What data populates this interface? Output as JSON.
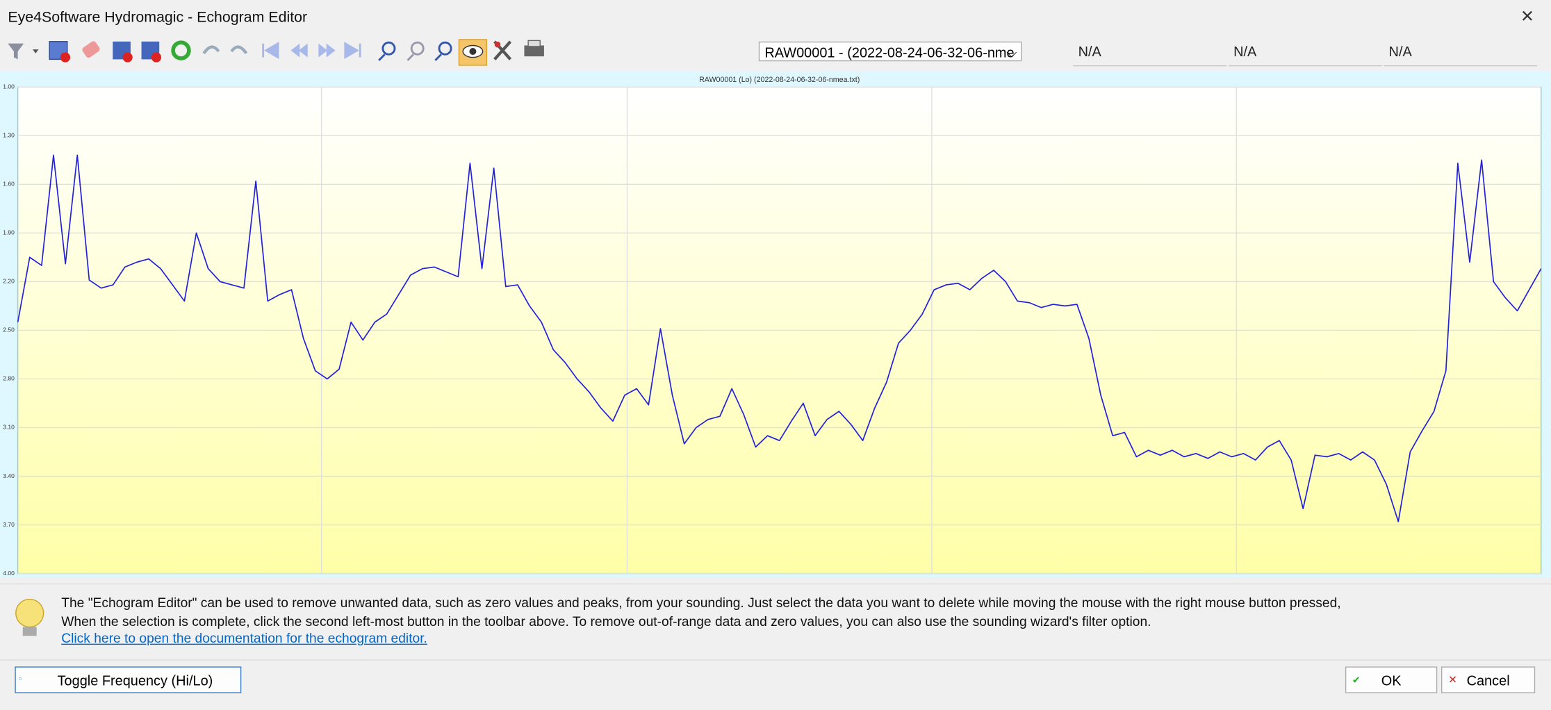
{
  "window": {
    "title": "Eye4Software Hydromagic - Echogram Editor"
  },
  "toolbar": {
    "file_select": "RAW00001 - (2022-08-24-06-32-06-nme",
    "fields": [
      "N/A",
      "N/A",
      "N/A"
    ]
  },
  "chart_data": {
    "type": "line",
    "title": "RAW00001 (Lo) (2022-08-24-06-32-06-nmea.txt)",
    "color": "#2222dd",
    "grid": true,
    "y_inverted": true,
    "ylim": [
      1,
      4
    ],
    "yticks": [
      {
        "value": 1,
        "label": "1.00"
      },
      {
        "value": 1.3,
        "label": "1.30"
      },
      {
        "value": 1.6,
        "label": "1.60"
      },
      {
        "value": 1.9,
        "label": "1.90"
      },
      {
        "value": 2.2,
        "label": "2.20"
      },
      {
        "value": 2.5,
        "label": "2.50"
      },
      {
        "value": 2.8,
        "label": "2.80"
      },
      {
        "value": 3.1,
        "label": "3.10"
      },
      {
        "value": 3.4,
        "label": "3.40"
      },
      {
        "value": 3.7,
        "label": "3.70"
      },
      {
        "value": 4,
        "label": "4.00"
      }
    ],
    "values": [
      2.45,
      2.05,
      2.1,
      1.42,
      2.09,
      1.42,
      2.19,
      2.24,
      2.22,
      2.11,
      2.08,
      2.06,
      2.12,
      2.22,
      2.32,
      1.9,
      2.12,
      2.2,
      2.22,
      2.24,
      1.58,
      2.32,
      2.28,
      2.25,
      2.55,
      2.75,
      2.8,
      2.74,
      2.45,
      2.56,
      2.45,
      2.4,
      2.28,
      2.16,
      2.12,
      2.11,
      2.14,
      2.17,
      1.47,
      2.12,
      1.5,
      2.23,
      2.22,
      2.35,
      2.45,
      2.62,
      2.7,
      2.8,
      2.88,
      2.98,
      3.06,
      2.9,
      2.86,
      2.96,
      2.49,
      2.9,
      3.2,
      3.1,
      3.05,
      3.03,
      2.86,
      3.02,
      3.22,
      3.15,
      3.18,
      3.06,
      2.95,
      3.15,
      3.05,
      3.0,
      3.08,
      3.18,
      2.98,
      2.82,
      2.58,
      2.5,
      2.4,
      2.25,
      2.22,
      2.21,
      2.25,
      2.18,
      2.13,
      2.2,
      2.32,
      2.33,
      2.36,
      2.34,
      2.35,
      2.34,
      2.55,
      2.9,
      3.15,
      3.13,
      3.28,
      3.24,
      3.27,
      3.24,
      3.28,
      3.26,
      3.29,
      3.25,
      3.28,
      3.26,
      3.3,
      3.22,
      3.18,
      3.3,
      3.6,
      3.27,
      3.28,
      3.26,
      3.3,
      3.25,
      3.3,
      3.45,
      3.68,
      3.25,
      3.12,
      3.0,
      2.75,
      1.47,
      2.08,
      1.45,
      2.2,
      2.3,
      2.38,
      2.25,
      2.12
    ]
  },
  "info": {
    "lines": [
      "The \"Echogram Editor\" can be used to remove unwanted data, such as zero values and peaks, from your sounding. Just select the data you want to delete while moving the mouse with the right mouse button pressed,",
      "When the selection is complete, click the second left-most button in the toolbar above. To remove out-of-range data and zero values, you can also use the sounding wizard's filter option."
    ],
    "link": "Click here to open the documentation for the echogram editor."
  },
  "buttons": {
    "toggle": "Toggle Frequency (Hi/Lo)",
    "ok": "OK",
    "cancel": "Cancel"
  }
}
